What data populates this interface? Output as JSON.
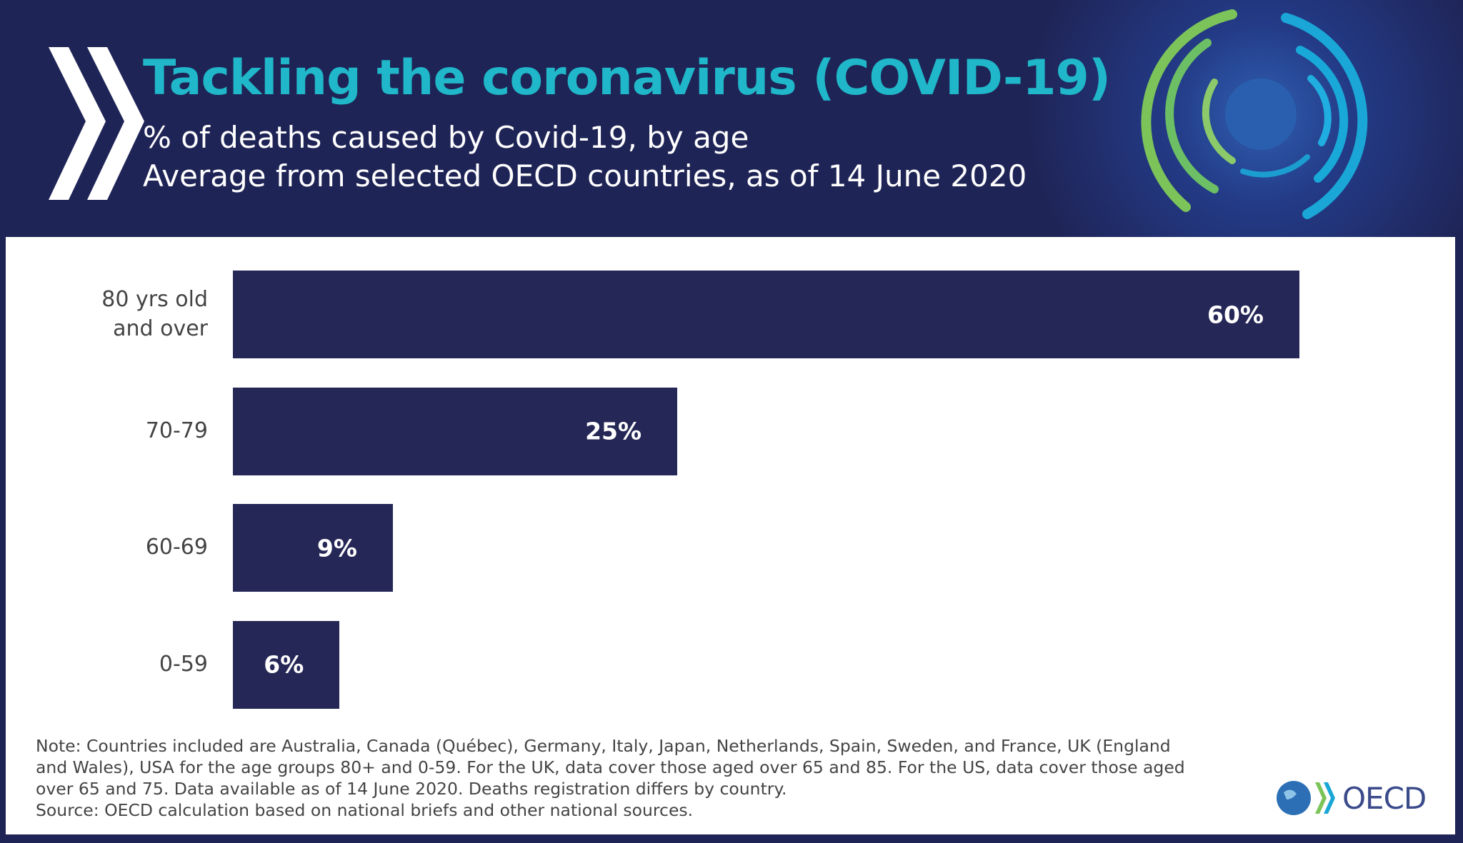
{
  "header": {
    "title": "Tackling the coronavirus (COVID-19)",
    "subtitle": [
      "% of deaths caused by Covid-19, by age",
      "Average from selected OECD countries, as of 14 June 2020"
    ]
  },
  "chart_data": {
    "type": "bar",
    "orientation": "horizontal",
    "categories": [
      "80 yrs old and over",
      "70-79",
      "60-69",
      "0-59"
    ],
    "values": [
      60,
      25,
      9,
      6
    ],
    "value_labels": [
      "60%",
      "25%",
      "9%",
      "6%"
    ],
    "color": "#252756"
  },
  "notes": {
    "note": "Note: Countries included are Australia, Canada (Québec), Germany, Italy, Japan, Netherlands, Spain, Sweden, and France, UK (England and Wales), USA for the age groups 80+ and 0-59. For the UK, data cover those aged over 65 and 85. For the US, data cover those aged over 65 and 75. Data available as of 14 June 2020. Deaths registration differs by country.",
    "source": "Source: OECD calculation based on national briefs and other national sources."
  },
  "logo": {
    "text": "OECD"
  }
}
